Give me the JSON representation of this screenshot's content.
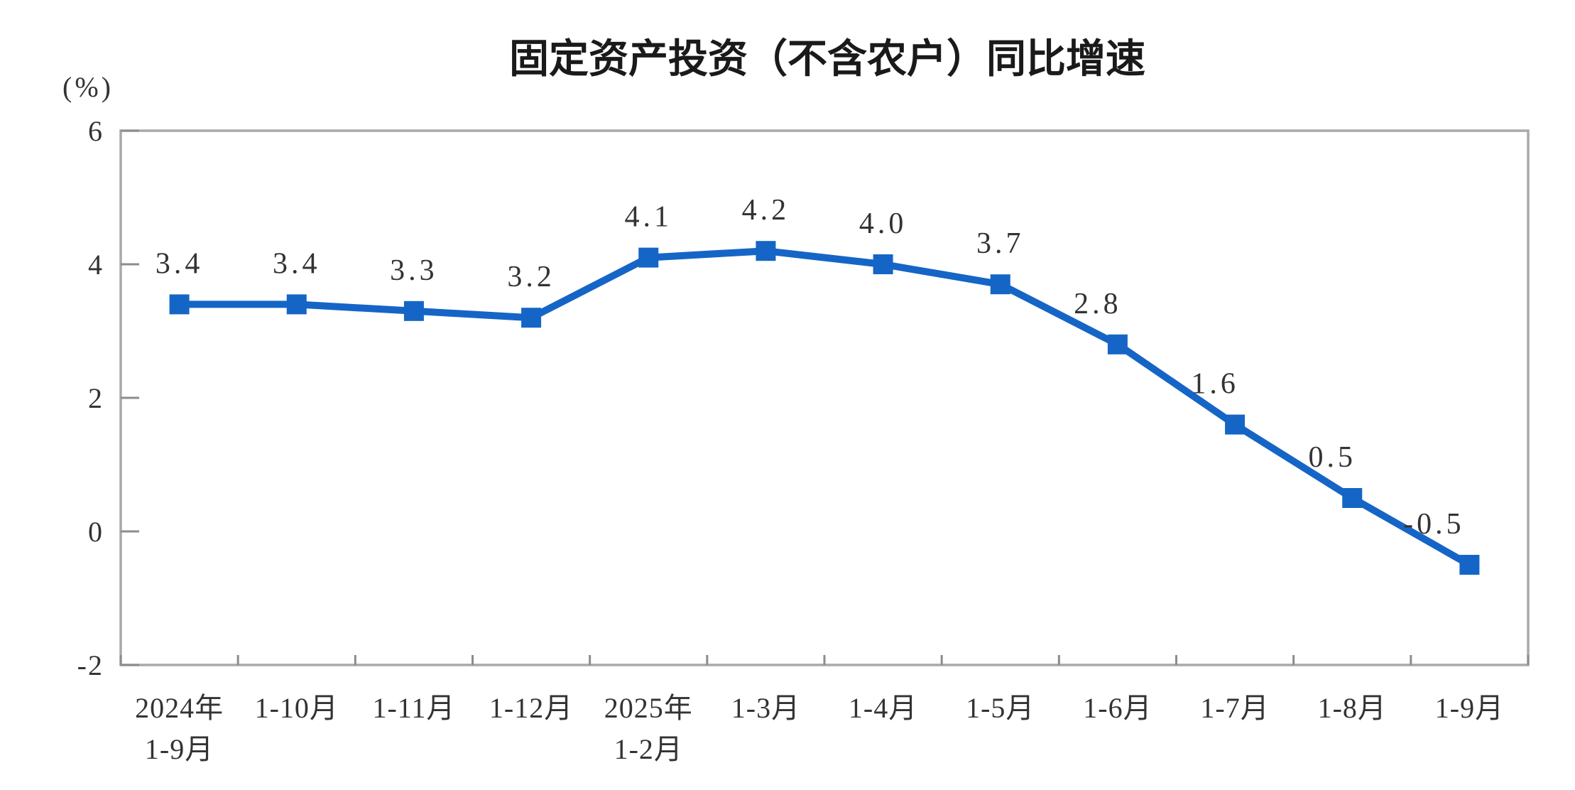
{
  "chart_data": {
    "type": "line",
    "title": "固定资产投资（不含农户）同比增速",
    "y_axis_unit": "(%)",
    "categories": [
      [
        "2024年",
        "1-9月"
      ],
      [
        "1-10月"
      ],
      [
        "1-11月"
      ],
      [
        "1-12月"
      ],
      [
        "2025年",
        "1-2月"
      ],
      [
        "1-3月"
      ],
      [
        "1-4月"
      ],
      [
        "1-5月"
      ],
      [
        "1-6月"
      ],
      [
        "1-7月"
      ],
      [
        "1-8月"
      ],
      [
        "1-9月"
      ]
    ],
    "values": [
      3.4,
      3.4,
      3.3,
      3.2,
      4.1,
      4.2,
      4.0,
      3.7,
      2.8,
      1.6,
      0.5,
      -0.5
    ],
    "data_labels": [
      "3.4",
      "3.4",
      "3.3",
      "3.2",
      "4.1",
      "4.2",
      "4.0",
      "3.7",
      "2.8",
      "1.6",
      "0.5",
      "-0.5"
    ],
    "y_ticks": [
      "6",
      "4",
      "2",
      "0",
      "-2"
    ],
    "ylim": [
      -2,
      6
    ],
    "xlabel": "",
    "ylabel": "(%)",
    "grid": false,
    "legend": "none",
    "marker_shape": "square",
    "colors": {
      "line": "#1565c6",
      "data_label": "#333333",
      "axis_label": "#333333",
      "title": "#1a1a1a",
      "frame": "#a9a9a9",
      "tick": "#8c8c8c"
    }
  }
}
